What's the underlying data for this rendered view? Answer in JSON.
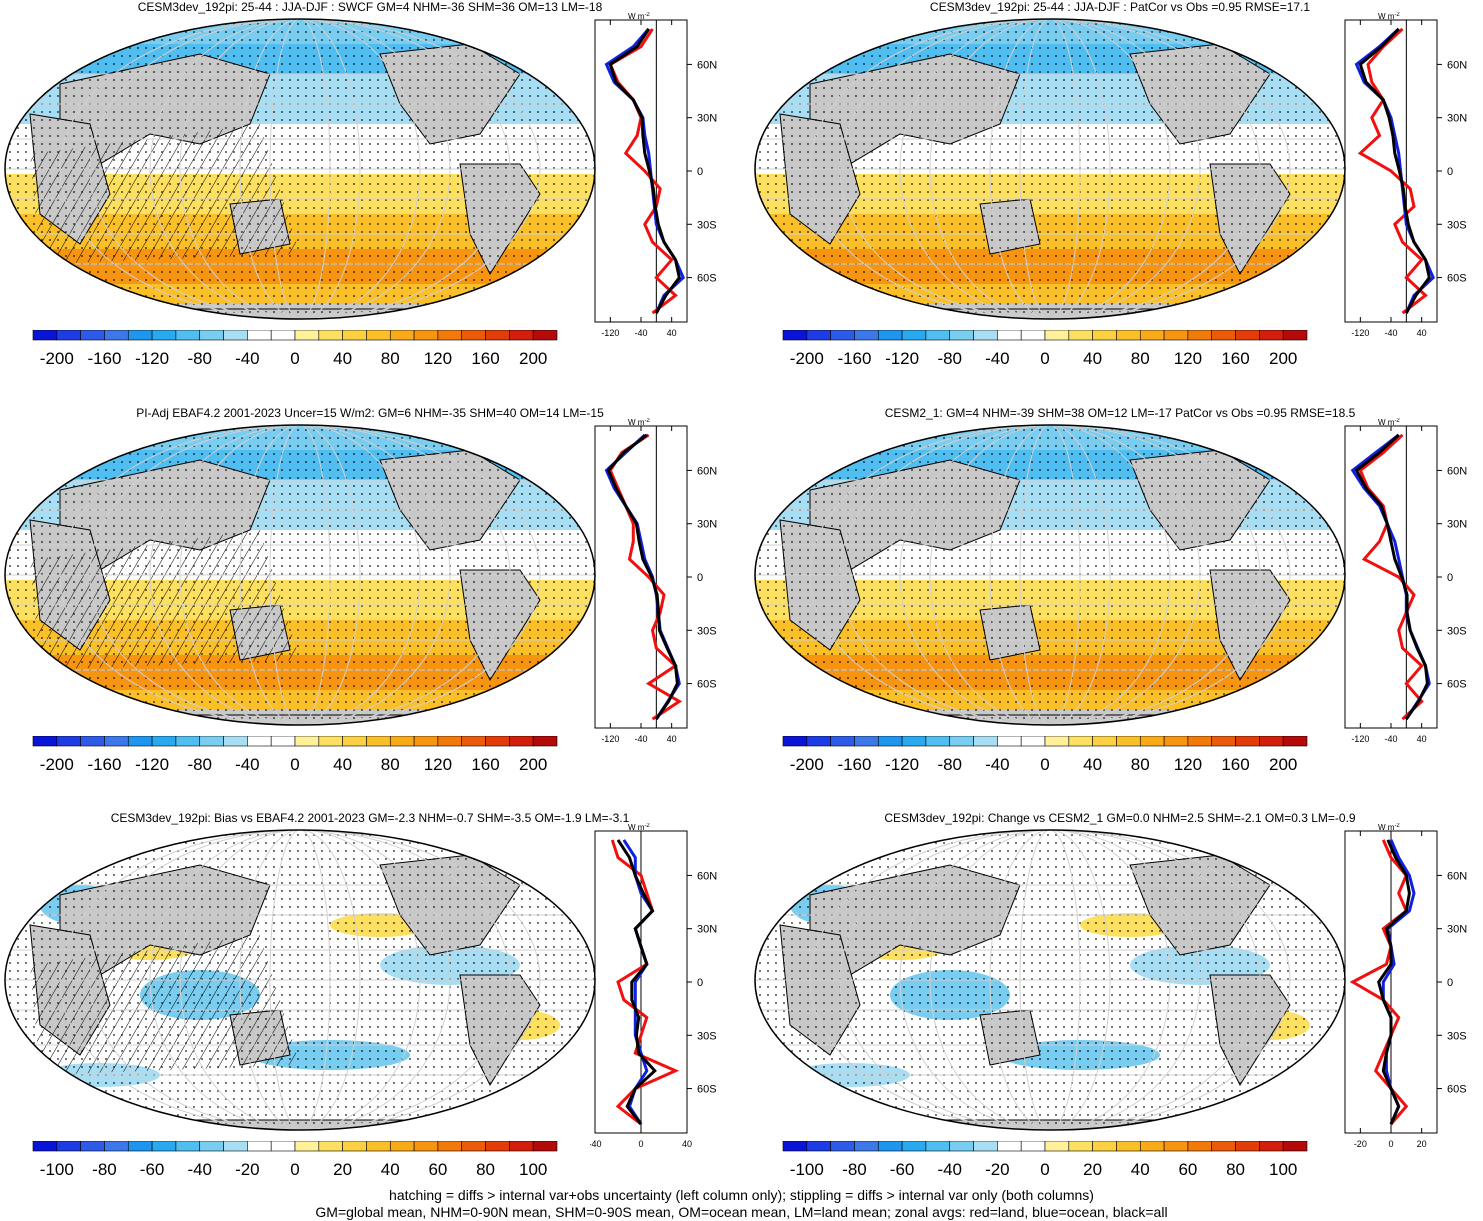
{
  "panels": [
    {
      "id": "p1",
      "title": "CESM3dev_192pi: 25-44 : JJA-DJF : SWCF GM=4 NHM=-36 SHM=36 OM=13 LM=-18",
      "colorbar": {
        "ticks": [
          "-200",
          "-160",
          "-120",
          "-80",
          "-40",
          "0",
          "40",
          "80",
          "120",
          "160",
          "200"
        ]
      },
      "zonal": {
        "xticks": [
          "-120",
          "-40",
          "40"
        ],
        "unit": "W m",
        "unit_sup": "-2"
      }
    },
    {
      "id": "p2",
      "title": "CESM3dev_192pi: 25-44 : JJA-DJF : PatCor vs Obs =0.95 RMSE=17.1",
      "colorbar": {
        "ticks": [
          "-200",
          "-160",
          "-120",
          "-80",
          "-40",
          "0",
          "40",
          "80",
          "120",
          "160",
          "200"
        ]
      },
      "zonal": {
        "xticks": [
          "-120",
          "-40",
          "40"
        ],
        "unit": "W m",
        "unit_sup": "-2"
      }
    },
    {
      "id": "p3",
      "title": "PI-Adj EBAF4.2 2001-2023 Uncer=15 W/m2: GM=6 NHM=-35 SHM=40 OM=14 LM=-15",
      "colorbar": {
        "ticks": [
          "-200",
          "-160",
          "-120",
          "-80",
          "-40",
          "0",
          "40",
          "80",
          "120",
          "160",
          "200"
        ]
      },
      "zonal": {
        "xticks": [
          "-120",
          "-40",
          "40"
        ],
        "unit": "W m",
        "unit_sup": "-2"
      }
    },
    {
      "id": "p4",
      "title": "CESM2_1: GM=4 NHM=-39 SHM=38 OM=12 LM=-17 PatCor vs Obs =0.95 RMSE=18.5",
      "colorbar": {
        "ticks": [
          "-200",
          "-160",
          "-120",
          "-80",
          "-40",
          "0",
          "40",
          "80",
          "120",
          "160",
          "200"
        ]
      },
      "zonal": {
        "xticks": [
          "-120",
          "-40",
          "40"
        ],
        "unit": "W m",
        "unit_sup": "-2"
      }
    },
    {
      "id": "p5",
      "title": "CESM3dev_192pi: Bias vs EBAF4.2 2001-2023 GM=-2.3 NHM=-0.7 SHM=-3.5 OM=-1.9 LM=-3.1",
      "colorbar": {
        "ticks": [
          "-100",
          "-80",
          "-60",
          "-40",
          "-20",
          "0",
          "20",
          "40",
          "60",
          "80",
          "100"
        ]
      },
      "zonal": {
        "xticks": [
          "-40",
          "0",
          "40"
        ],
        "unit": "W m",
        "unit_sup": "-2"
      }
    },
    {
      "id": "p6",
      "title": "CESM3dev_192pi: Change vs CESM2_1 GM=0.0 NHM=2.5 SHM=-2.1 OM=0.3 LM=-0.9",
      "colorbar": {
        "ticks": [
          "-100",
          "-80",
          "-60",
          "-40",
          "-20",
          "0",
          "20",
          "40",
          "60",
          "80",
          "100"
        ]
      },
      "zonal": {
        "xticks": [
          "-20",
          "0",
          "20"
        ],
        "unit": "W m",
        "unit_sup": "-2"
      }
    }
  ],
  "lat_labels": [
    "60N",
    "30N",
    "0",
    "30S",
    "60S"
  ],
  "colorbar_colors": [
    "#0a14d8",
    "#1e3ce6",
    "#2d5ae8",
    "#3c78ea",
    "#1e96f0",
    "#28aaf0",
    "#50bef0",
    "#78cdf0",
    "#a8def4",
    "#ffffff",
    "#ffffff",
    "#fff09a",
    "#fde060",
    "#fcd040",
    "#fbbf28",
    "#f9aa18",
    "#f79510",
    "#f27a0a",
    "#ec5c08",
    "#e23c08",
    "#d21e0a",
    "#b40a0a"
  ],
  "chart_data": [
    {
      "type": "heatmap",
      "panel": "p1",
      "colorbar_range": [
        -200,
        200
      ],
      "zonal_avg": {
        "xlim": [
          -160,
          80
        ],
        "legend": [
          "red=land",
          "blue=ocean",
          "black=all"
        ],
        "lat": [
          80,
          70,
          60,
          50,
          40,
          30,
          20,
          10,
          0,
          -10,
          -20,
          -30,
          -40,
          -50,
          -60,
          -70,
          -80
        ],
        "land": [
          -10,
          -40,
          -120,
          -100,
          -60,
          -40,
          -50,
          -80,
          -30,
          10,
          0,
          -30,
          -10,
          40,
          0,
          50,
          -10
        ],
        "ocean": [
          -20,
          -60,
          -130,
          -110,
          -60,
          -35,
          -30,
          -20,
          -15,
          -10,
          -5,
          0,
          20,
          50,
          70,
          20,
          0
        ],
        "all": [
          -20,
          -50,
          -120,
          -105,
          -60,
          -37,
          -35,
          -30,
          -18,
          -8,
          -3,
          5,
          20,
          50,
          60,
          25,
          0
        ]
      }
    },
    {
      "type": "heatmap",
      "panel": "p2",
      "colorbar_range": [
        -200,
        200
      ],
      "zonal_avg": {
        "xlim": [
          -160,
          80
        ],
        "legend": [
          "red=land",
          "blue=ocean",
          "black=all"
        ],
        "lat": [
          80,
          70,
          60,
          50,
          40,
          30,
          20,
          10,
          0,
          -10,
          -20,
          -30,
          -40,
          -50,
          -60,
          -70,
          -80
        ],
        "land": [
          -10,
          -60,
          -100,
          -90,
          -60,
          -90,
          -70,
          -120,
          -40,
          10,
          20,
          -30,
          -10,
          40,
          0,
          50,
          -10
        ],
        "ocean": [
          -20,
          -70,
          -130,
          -110,
          -60,
          -40,
          -30,
          -20,
          -15,
          -10,
          -5,
          0,
          20,
          50,
          70,
          20,
          0
        ],
        "all": [
          -20,
          -65,
          -120,
          -105,
          -60,
          -45,
          -35,
          -30,
          -18,
          -8,
          -3,
          5,
          20,
          50,
          60,
          25,
          0
        ]
      }
    },
    {
      "type": "heatmap",
      "panel": "p3",
      "colorbar_range": [
        -200,
        200
      ],
      "zonal_avg": {
        "xlim": [
          -160,
          80
        ],
        "legend": [
          "red=land",
          "blue=ocean",
          "black=all"
        ],
        "lat": [
          80,
          70,
          60,
          50,
          40,
          30,
          20,
          10,
          0,
          -10,
          -20,
          -30,
          -40,
          -50,
          -60,
          -70,
          -80
        ],
        "land": [
          -20,
          -90,
          -120,
          -100,
          -80,
          -60,
          -60,
          -70,
          -20,
          20,
          10,
          -10,
          0,
          50,
          -20,
          60,
          -10
        ],
        "ocean": [
          -30,
          -80,
          -130,
          -110,
          -80,
          -50,
          -40,
          -30,
          -10,
          0,
          5,
          10,
          30,
          50,
          60,
          30,
          0
        ],
        "all": [
          -25,
          -85,
          -125,
          -105,
          -80,
          -52,
          -45,
          -35,
          -12,
          2,
          6,
          8,
          28,
          50,
          55,
          32,
          0
        ]
      }
    },
    {
      "type": "heatmap",
      "panel": "p4",
      "colorbar_range": [
        -200,
        200
      ],
      "zonal_avg": {
        "xlim": [
          -160,
          80
        ],
        "legend": [
          "red=land",
          "blue=ocean",
          "black=all"
        ],
        "lat": [
          80,
          70,
          60,
          50,
          40,
          30,
          20,
          10,
          0,
          -10,
          -20,
          -30,
          -40,
          -50,
          -60,
          -70,
          -80
        ],
        "land": [
          -10,
          -60,
          -120,
          -100,
          -60,
          -50,
          -70,
          -110,
          -20,
          20,
          0,
          -20,
          -10,
          40,
          0,
          40,
          -10
        ],
        "ocean": [
          -20,
          -80,
          -140,
          -110,
          -70,
          -50,
          -30,
          -20,
          -10,
          0,
          0,
          10,
          30,
          50,
          60,
          30,
          0
        ],
        "all": [
          -20,
          -70,
          -130,
          -105,
          -65,
          -50,
          -40,
          -30,
          -12,
          2,
          2,
          10,
          28,
          50,
          55,
          32,
          0
        ]
      }
    },
    {
      "type": "heatmap",
      "panel": "p5",
      "colorbar_range": [
        -100,
        100
      ],
      "zonal_avg": {
        "xlim": [
          -40,
          40
        ],
        "legend": [
          "red=land",
          "blue=ocean",
          "black=all"
        ],
        "lat": [
          80,
          70,
          60,
          50,
          40,
          30,
          20,
          10,
          0,
          -10,
          -20,
          -30,
          -40,
          -50,
          -60,
          -70,
          -80
        ],
        "land": [
          -25,
          -20,
          0,
          5,
          10,
          -5,
          0,
          5,
          -20,
          -15,
          5,
          0,
          -5,
          30,
          -5,
          -20,
          0
        ],
        "ocean": [
          -15,
          -5,
          -5,
          0,
          10,
          -5,
          0,
          5,
          -5,
          -5,
          -5,
          -5,
          0,
          5,
          -5,
          -10,
          0
        ],
        "all": [
          -20,
          -10,
          -5,
          2,
          10,
          -5,
          0,
          5,
          -8,
          -8,
          -2,
          -4,
          -2,
          12,
          -5,
          -12,
          0
        ]
      }
    },
    {
      "type": "heatmap",
      "panel": "p6",
      "colorbar_range": [
        -100,
        100
      ],
      "zonal_avg": {
        "xlim": [
          -30,
          30
        ],
        "legend": [
          "red=land",
          "blue=ocean",
          "black=all"
        ],
        "lat": [
          80,
          70,
          60,
          50,
          40,
          30,
          20,
          10,
          0,
          -10,
          -20,
          -30,
          -40,
          -50,
          -60,
          -70,
          -80
        ],
        "land": [
          -5,
          0,
          10,
          5,
          10,
          -5,
          0,
          -3,
          -25,
          -5,
          5,
          0,
          -5,
          -10,
          0,
          10,
          0
        ],
        "ocean": [
          0,
          5,
          12,
          15,
          12,
          -2,
          0,
          2,
          -5,
          -5,
          0,
          0,
          -3,
          -3,
          0,
          5,
          0
        ],
        "all": [
          -2,
          3,
          10,
          12,
          10,
          -3,
          0,
          0,
          -8,
          -5,
          0,
          0,
          -3,
          -5,
          0,
          5,
          0
        ]
      }
    }
  ],
  "footer": {
    "line1": "hatching = diffs > internal var+obs uncertainty (left column only); stippling = diffs > internal var only (both columns)",
    "line2": "GM=global mean, NHM=0-90N mean, SHM=0-90S mean, OM=ocean mean, LM=land mean; zonal avgs: red=land, blue=ocean, black=all"
  }
}
